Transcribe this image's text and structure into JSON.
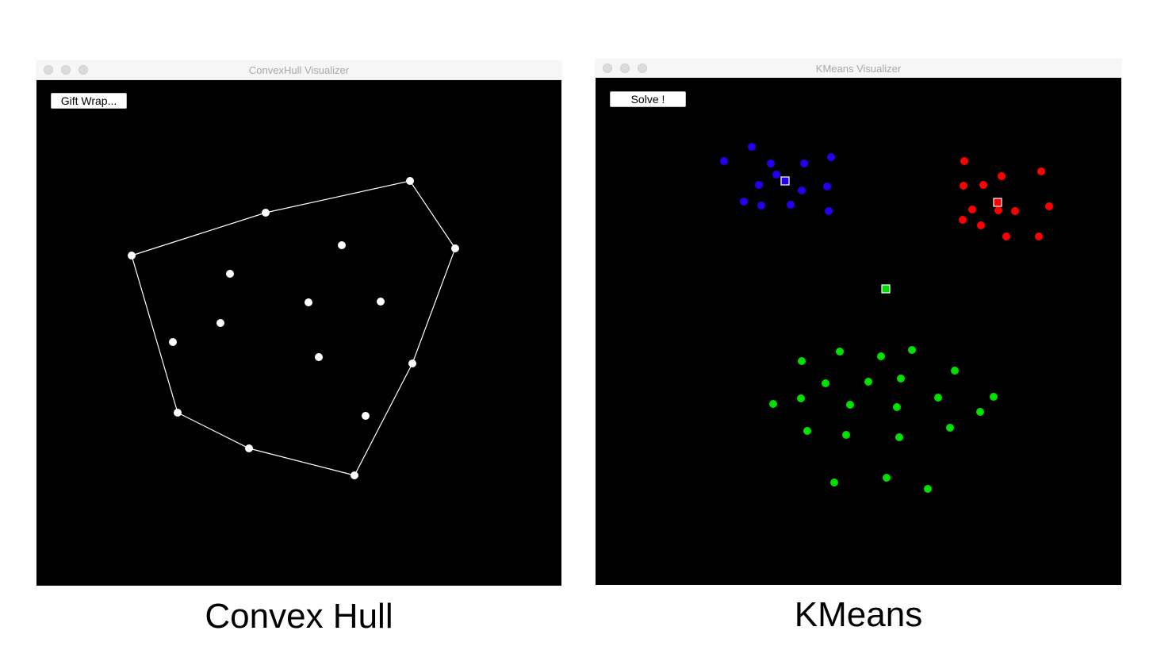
{
  "convex_window": {
    "title": "ConvexHull Visualizer",
    "button_label": "Gift Wrap...",
    "caption": "Convex Hull",
    "point_color": "#ffffff",
    "hull_color": "#ffffff"
  },
  "kmeans_window": {
    "title": "KMeans Visualizer",
    "button_label": "Solve !",
    "caption": "KMeans",
    "clusters": [
      {
        "color": "#2200ee"
      },
      {
        "color": "#ff0000"
      },
      {
        "color": "#00e000"
      }
    ]
  }
}
